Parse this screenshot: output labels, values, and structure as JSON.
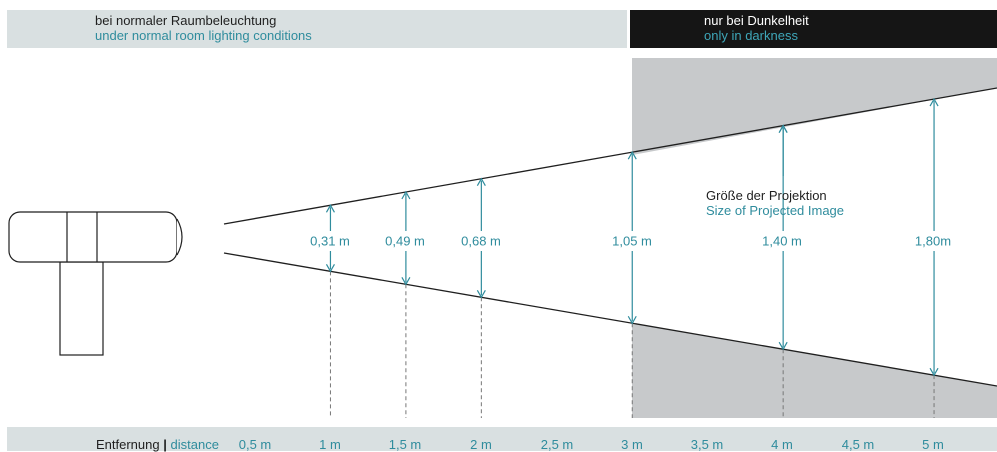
{
  "header": {
    "left": {
      "de": "bei normaler Raumbeleuchtung",
      "en": "under normal room lighting conditions"
    },
    "right": {
      "de": "nur bei Dunkelheit",
      "en": "only in darkness"
    }
  },
  "projection_label": {
    "de": "Größe der Projektion",
    "en": "Size of Projected Image"
  },
  "measurements": [
    {
      "distance_m": 1,
      "label": "0,31 m"
    },
    {
      "distance_m": 1.5,
      "label": "0,49 m"
    },
    {
      "distance_m": 2,
      "label": "0,68 m"
    },
    {
      "distance_m": 3,
      "label": "1,05 m"
    },
    {
      "distance_m": 4,
      "label": "1,40 m"
    },
    {
      "distance_m": 5,
      "label": "1,80m"
    }
  ],
  "distance_axis": {
    "label_de": "Entfernung",
    "separator": "|",
    "label_en": "distance",
    "ticks": [
      "0,5 m",
      "1 m",
      "1,5 m",
      "2 m",
      "2,5 m",
      "3 m",
      "3,5 m",
      "4 m",
      "4,5 m",
      "5 m"
    ]
  },
  "colors": {
    "accent": "#2f8c9d",
    "panel_light": "#d9e0e1",
    "panel_dark": "#151515",
    "darkness_zone": "#c7c9cb",
    "line": "#1f1f1f"
  }
}
